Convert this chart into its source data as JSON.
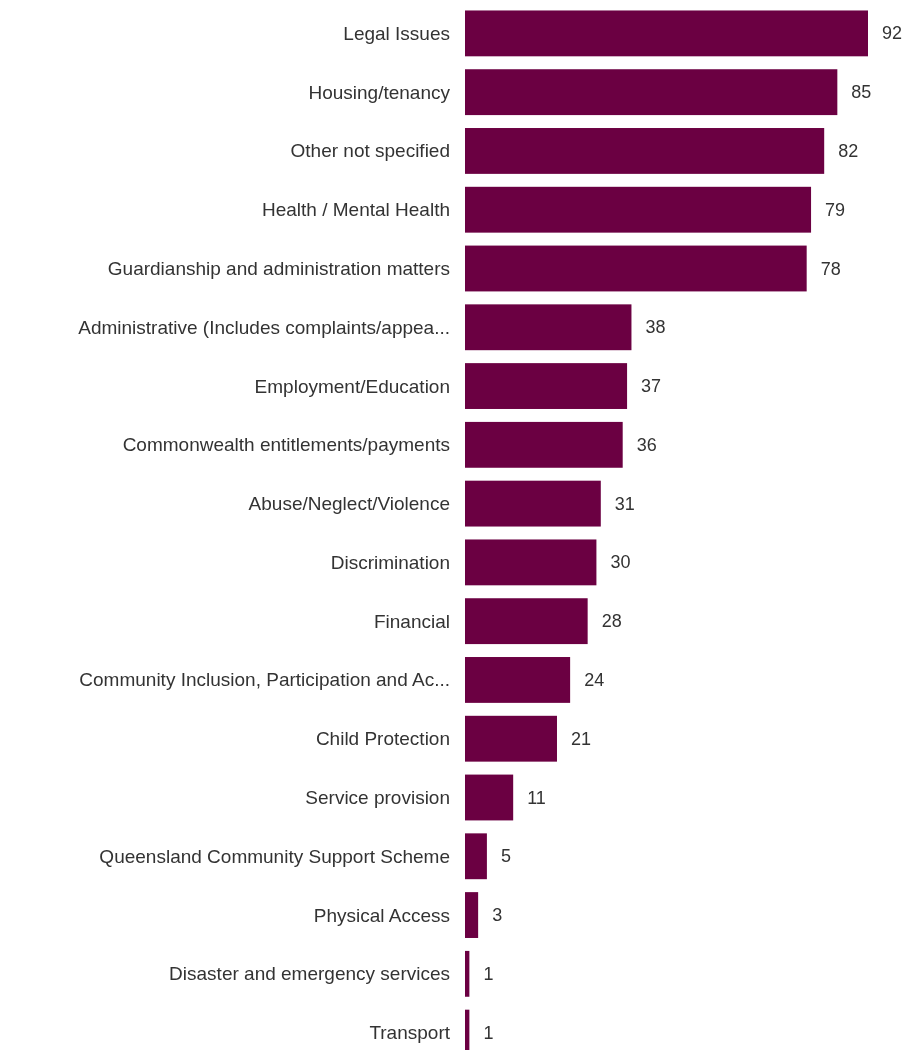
{
  "chart_data": {
    "type": "bar",
    "orientation": "horizontal",
    "data_labels": true,
    "categories": [
      "Legal Issues",
      "Housing/tenancy",
      "Other not specified",
      "Health / Mental Health",
      "Guardianship and administration matters",
      "Administrative (Includes complaints/appea...",
      "Employment/Education",
      "Commonwealth entitlements/payments",
      "Abuse/Neglect/Violence",
      "Discrimination",
      "Financial",
      "Community Inclusion, Participation and Ac...",
      "Child Protection",
      "Service provision",
      "Queensland Community Support Scheme",
      "Physical Access",
      "Disaster and emergency services",
      "Transport"
    ],
    "values": [
      92,
      85,
      82,
      79,
      78,
      38,
      37,
      36,
      31,
      30,
      28,
      24,
      21,
      11,
      5,
      3,
      1,
      1
    ],
    "color": "#6b0042"
  }
}
